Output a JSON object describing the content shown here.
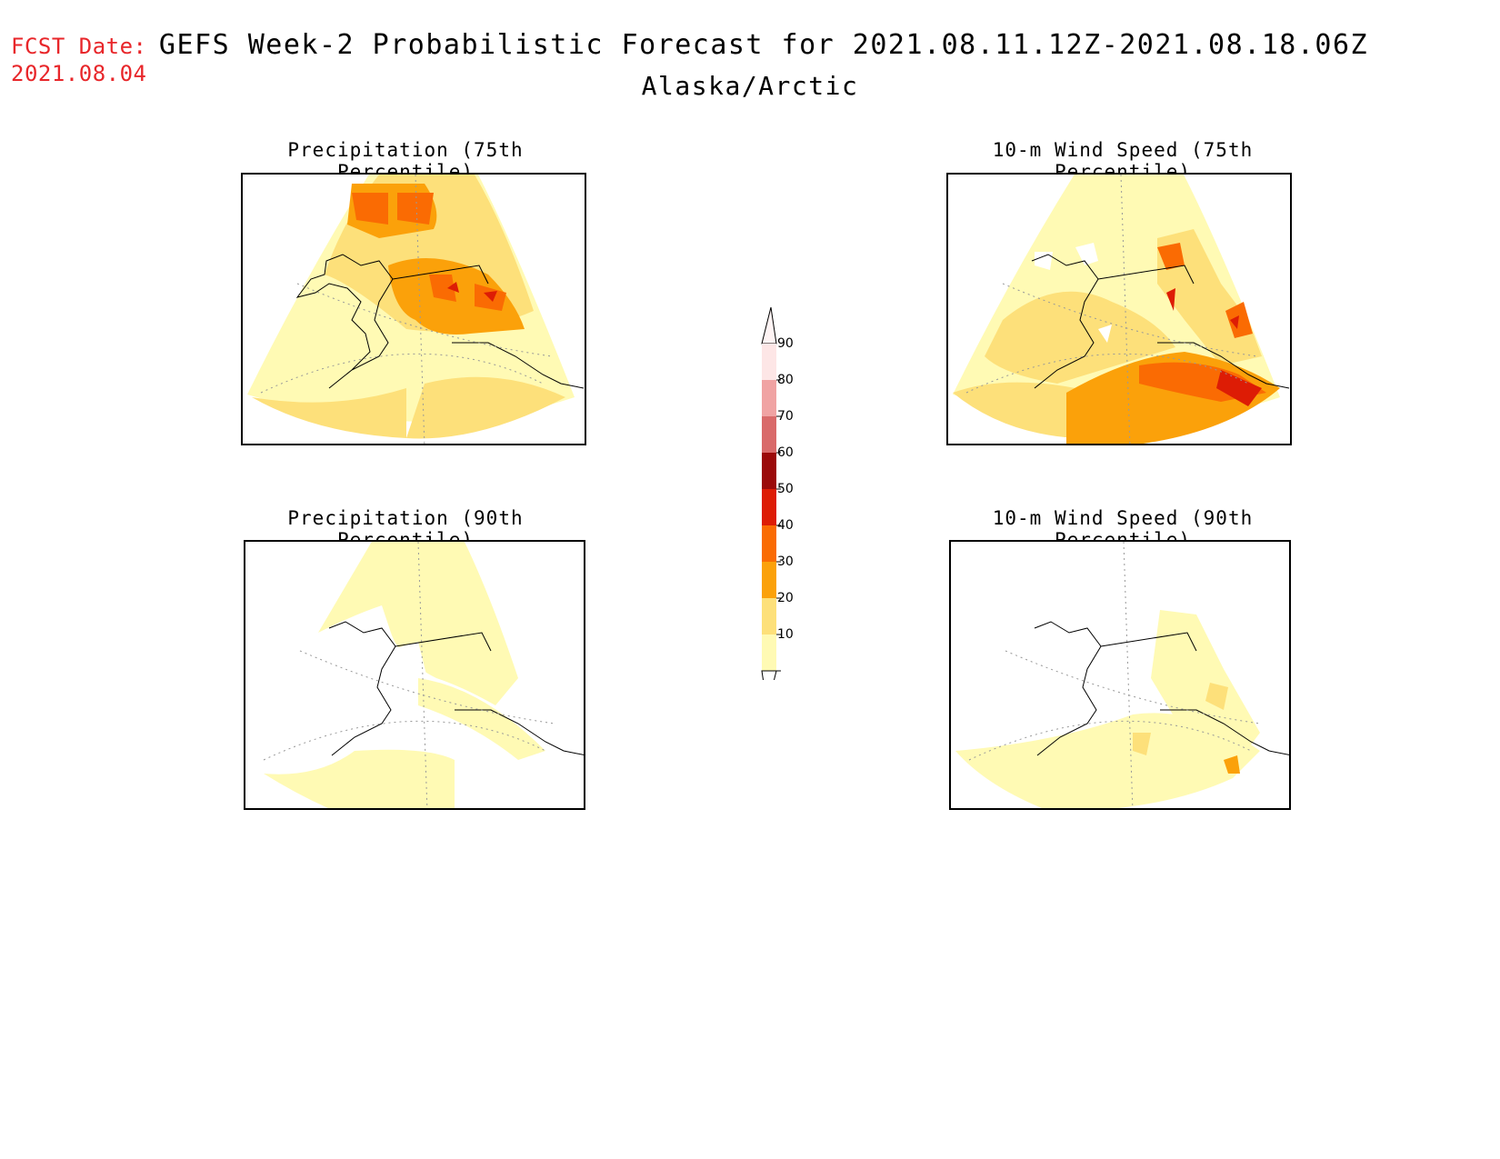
{
  "header": {
    "fcst_label": "FCST Date:",
    "fcst_date": "2021.08.04",
    "title": "GEFS Week-2 Probabilistic Forecast for 2021.08.11.12Z-2021.08.18.06Z",
    "region": "Alaska/Arctic"
  },
  "panels": [
    {
      "id": "p1",
      "title": "Precipitation (75th Percentile)"
    },
    {
      "id": "p2",
      "title": "10-m Wind Speed (75th Percentile)"
    },
    {
      "id": "p3",
      "title": "Precipitation (90th Percentile)"
    },
    {
      "id": "p4",
      "title": "10-m Wind Speed (90th Percentile)"
    }
  ],
  "colorbar": {
    "levels": [
      {
        "label": "90",
        "color": "#fde6e6"
      },
      {
        "label": "80",
        "color": "#f0a3a3"
      },
      {
        "label": "70",
        "color": "#d96a6a"
      },
      {
        "label": "60",
        "color": "#9b0a0a"
      },
      {
        "label": "50",
        "color": "#dd1c05"
      },
      {
        "label": "40",
        "color": "#fa6b03"
      },
      {
        "label": "30",
        "color": "#fba10a"
      },
      {
        "label": "20",
        "color": "#fde07a"
      },
      {
        "label": "10",
        "color": "#fffab4"
      }
    ]
  },
  "colors": {
    "c10": "#fffab4",
    "c20": "#fde07a",
    "c30": "#fba10a",
    "c40": "#fa6b03",
    "c50": "#dd1c05",
    "fcst": "#e8262a"
  }
}
